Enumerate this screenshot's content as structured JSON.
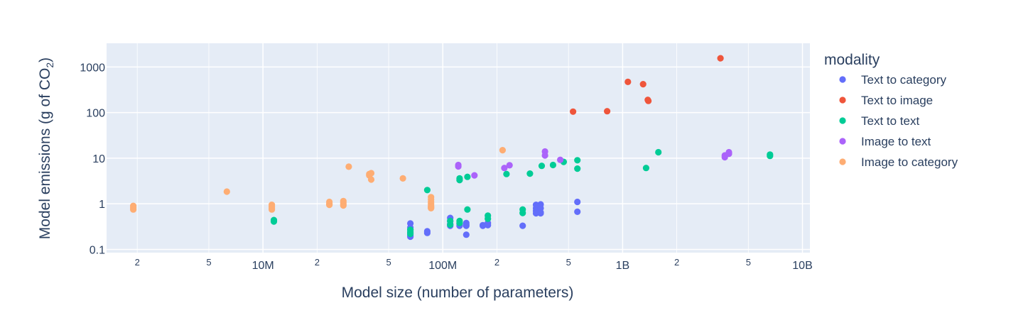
{
  "chart_data": {
    "type": "scatter",
    "title": "",
    "xlabel": "Model size (number of parameters)",
    "ylabel_main": "Model emissions (g of CO",
    "ylabel_sub": "2",
    "ylabel_close": ")",
    "xscale": "log",
    "yscale": "log",
    "xlim": [
      1350000,
      11000000000
    ],
    "ylim": [
      0.085,
      3300
    ],
    "grid": true,
    "x_major_ticks": [
      {
        "value": 10000000,
        "label": "10M"
      },
      {
        "value": 100000000,
        "label": "100M"
      },
      {
        "value": 1000000000,
        "label": "1B"
      },
      {
        "value": 10000000000,
        "label": "10B"
      }
    ],
    "x_minor_ticks": [
      {
        "value": 2000000,
        "label": "2"
      },
      {
        "value": 5000000,
        "label": "5"
      },
      {
        "value": 20000000,
        "label": "2"
      },
      {
        "value": 50000000,
        "label": "5"
      },
      {
        "value": 200000000,
        "label": "2"
      },
      {
        "value": 500000000,
        "label": "5"
      },
      {
        "value": 2000000000,
        "label": "2"
      },
      {
        "value": 5000000000,
        "label": "5"
      }
    ],
    "y_ticks": [
      {
        "value": 0.1,
        "label": "0.1"
      },
      {
        "value": 1,
        "label": "1"
      },
      {
        "value": 10,
        "label": "10"
      },
      {
        "value": 100,
        "label": "100"
      },
      {
        "value": 1000,
        "label": "1000"
      }
    ],
    "legend": {
      "title": "modality",
      "position": "right"
    },
    "series": [
      {
        "name": "Text to category",
        "color": "#636efa",
        "points": [
          [
            66000000,
            0.37
          ],
          [
            66000000,
            0.3
          ],
          [
            66000000,
            0.27
          ],
          [
            66000000,
            0.24
          ],
          [
            66000000,
            0.22
          ],
          [
            66000000,
            0.2
          ],
          [
            66000000,
            0.19
          ],
          [
            82000000,
            0.25
          ],
          [
            82000000,
            0.23
          ],
          [
            110000000,
            0.49
          ],
          [
            110000000,
            0.42
          ],
          [
            110000000,
            0.36
          ],
          [
            110000000,
            0.33
          ],
          [
            124000000,
            0.36
          ],
          [
            124000000,
            0.33
          ],
          [
            135000000,
            0.38
          ],
          [
            135000000,
            0.35
          ],
          [
            135000000,
            0.33
          ],
          [
            135000000,
            0.21
          ],
          [
            167000000,
            0.34
          ],
          [
            167000000,
            0.33
          ],
          [
            178000000,
            0.38
          ],
          [
            178000000,
            0.34
          ],
          [
            278000000,
            0.33
          ],
          [
            330000000,
            0.95
          ],
          [
            330000000,
            0.8
          ],
          [
            330000000,
            0.7
          ],
          [
            330000000,
            0.62
          ],
          [
            350000000,
            0.97
          ],
          [
            350000000,
            0.8
          ],
          [
            350000000,
            0.65
          ],
          [
            350000000,
            0.62
          ],
          [
            560000000,
            1.1
          ],
          [
            560000000,
            0.67
          ]
        ]
      },
      {
        "name": "Text to image",
        "color": "#ef553b",
        "points": [
          [
            530000000,
            105
          ],
          [
            820000000,
            107
          ],
          [
            1070000000,
            470
          ],
          [
            1300000000,
            420
          ],
          [
            1380000000,
            190
          ],
          [
            1390000000,
            180
          ],
          [
            3500000000,
            1550
          ]
        ]
      },
      {
        "name": "Text to text",
        "color": "#00cc96",
        "points": [
          [
            11500000,
            0.44
          ],
          [
            11500000,
            0.41
          ],
          [
            66000000,
            0.27
          ],
          [
            66000000,
            0.24
          ],
          [
            66000000,
            0.22
          ],
          [
            82000000,
            2.0
          ],
          [
            110000000,
            0.42
          ],
          [
            110000000,
            0.35
          ],
          [
            124000000,
            3.6
          ],
          [
            124000000,
            3.3
          ],
          [
            124000000,
            0.42
          ],
          [
            124000000,
            0.38
          ],
          [
            137000000,
            3.9
          ],
          [
            137000000,
            0.75
          ],
          [
            178000000,
            0.55
          ],
          [
            178000000,
            0.47
          ],
          [
            226000000,
            4.5
          ],
          [
            278000000,
            0.75
          ],
          [
            278000000,
            0.63
          ],
          [
            305000000,
            4.6
          ],
          [
            355000000,
            6.8
          ],
          [
            410000000,
            7.1
          ],
          [
            470000000,
            8.3
          ],
          [
            560000000,
            9.0
          ],
          [
            560000000,
            5.9
          ],
          [
            1350000000,
            6.1
          ],
          [
            1580000000,
            13.5
          ],
          [
            6600000000,
            12.0
          ],
          [
            6600000000,
            11.2
          ]
        ]
      },
      {
        "name": "Image to text",
        "color": "#ab63fa",
        "points": [
          [
            122000000,
            7.1
          ],
          [
            122000000,
            6.6
          ],
          [
            150000000,
            4.2
          ],
          [
            220000000,
            6.1
          ],
          [
            235000000,
            7.0
          ],
          [
            370000000,
            14.0
          ],
          [
            370000000,
            11.5
          ],
          [
            450000000,
            9.2
          ],
          [
            3700000000,
            10.5
          ],
          [
            3700000000,
            11.5
          ],
          [
            3900000000,
            12.5
          ],
          [
            3900000000,
            13.5
          ]
        ]
      },
      {
        "name": "Image to category",
        "color": "#fead73",
        "points": [
          [
            1900000,
            0.9
          ],
          [
            1900000,
            0.82
          ],
          [
            1900000,
            0.75
          ],
          [
            6300000,
            1.85
          ],
          [
            11200000,
            0.95
          ],
          [
            11200000,
            0.87
          ],
          [
            11200000,
            0.8
          ],
          [
            11200000,
            0.75
          ],
          [
            23400000,
            1.1
          ],
          [
            23400000,
            1.0
          ],
          [
            23400000,
            0.95
          ],
          [
            28000000,
            1.15
          ],
          [
            28000000,
            1.05
          ],
          [
            28000000,
            0.97
          ],
          [
            28000000,
            0.92
          ],
          [
            30000000,
            6.5
          ],
          [
            39000000,
            4.5
          ],
          [
            39000000,
            4.2
          ],
          [
            40000000,
            4.7
          ],
          [
            40000000,
            3.4
          ],
          [
            60000000,
            3.6
          ],
          [
            86000000,
            1.4
          ],
          [
            86000000,
            1.25
          ],
          [
            86000000,
            1.1
          ],
          [
            86000000,
            1.0
          ],
          [
            86000000,
            0.9
          ],
          [
            86000000,
            0.85
          ],
          [
            86000000,
            0.82
          ],
          [
            86000000,
            0.8
          ],
          [
            215000000,
            15.0
          ]
        ]
      }
    ]
  }
}
